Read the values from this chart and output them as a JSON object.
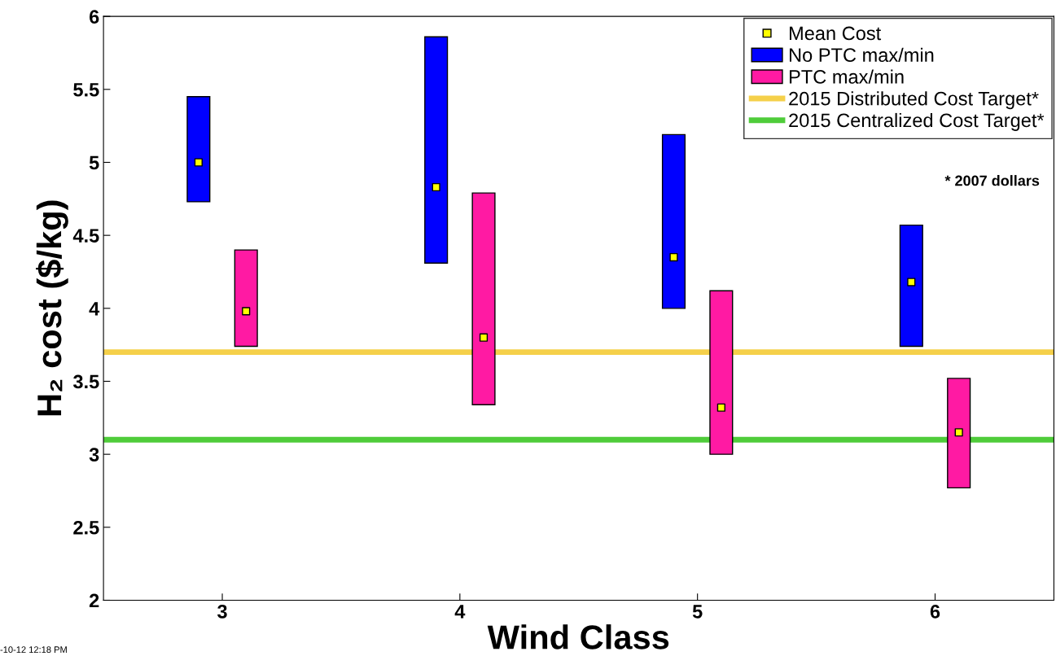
{
  "chart_data": {
    "type": "bar",
    "xlabel": "Wind Class",
    "ylabel": "H₂ cost ($/kg)",
    "xlim": [
      2.5,
      6.5
    ],
    "xticks": [
      3,
      4,
      5,
      6
    ],
    "ylim": [
      2,
      6
    ],
    "yticks": [
      2,
      2.5,
      3,
      3.5,
      4,
      4.5,
      5,
      5.5,
      6
    ],
    "grid": false,
    "legend": "top right",
    "series": [
      {
        "name": "Mean Cost",
        "type": "scatter",
        "marker": "square",
        "color": "#ffff00",
        "x": [
          2.9,
          3.1,
          3.9,
          4.1,
          4.9,
          5.1,
          5.9,
          6.1
        ],
        "values": [
          5.0,
          3.98,
          4.83,
          3.8,
          4.35,
          3.32,
          4.18,
          3.15
        ]
      },
      {
        "name": "No PTC max/min",
        "color": "#0000ff",
        "x": [
          2.9,
          3.9,
          4.9,
          5.9
        ],
        "base": [
          4.73,
          4.31,
          4.0,
          3.74
        ],
        "values": [
          0.72,
          1.55,
          1.19,
          0.83
        ]
      },
      {
        "name": "PTC max/min",
        "color": "#ff1aa3",
        "x": [
          3.1,
          4.1,
          5.1,
          6.1
        ],
        "base": [
          3.74,
          3.34,
          3.0,
          2.77
        ],
        "values": [
          0.66,
          1.45,
          1.12,
          0.75
        ]
      }
    ],
    "ref_lines": [
      {
        "axis": "y",
        "value": 3.7,
        "label": "2015 Distributed Cost Target*",
        "color": "#f5d04a"
      },
      {
        "axis": "y",
        "value": 3.1,
        "label": "2015 Centralized Cost Target*",
        "color": "#4fcc3a"
      }
    ],
    "annotations": [
      "* 2007 dollars",
      "-10-12 12:18 PM"
    ]
  }
}
